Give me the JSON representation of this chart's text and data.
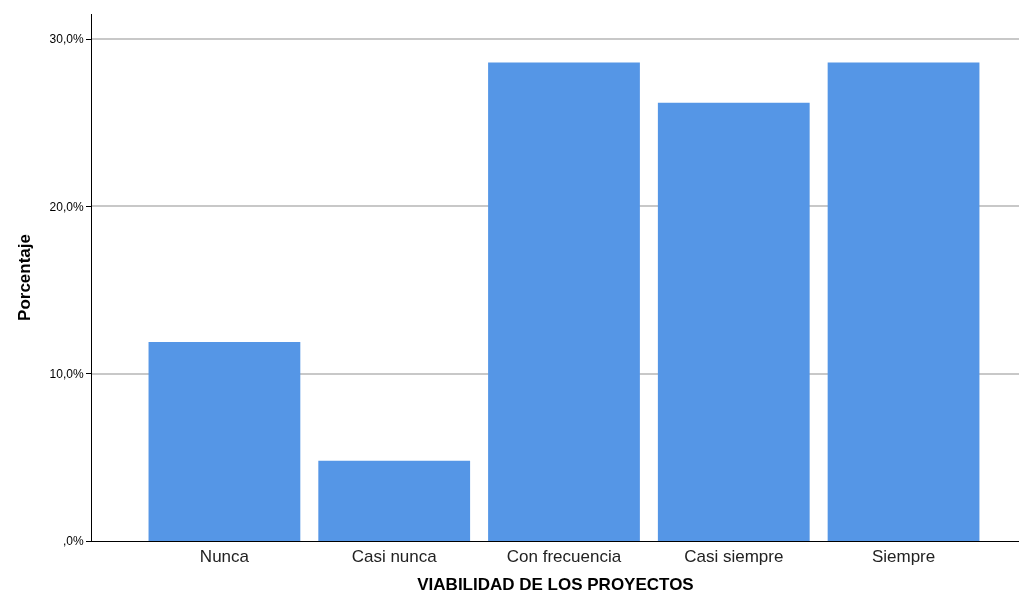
{
  "chart_data": {
    "type": "bar",
    "xlabel": "VIABILIDAD DE LOS PROYECTOS",
    "ylabel": "Porcentaje",
    "categories": [
      "Nunca",
      "Casi nunca",
      "Con frecuencia",
      "Casi siempre",
      "Siempre"
    ],
    "values": [
      11.9,
      4.8,
      28.6,
      26.2,
      28.6
    ],
    "color": "#5596e6",
    "ylim": [
      0,
      31.5
    ],
    "yticks": [
      {
        "value": 0,
        "label": ",0%"
      },
      {
        "value": 10,
        "label": "10,0%"
      },
      {
        "value": 20,
        "label": "20,0%"
      },
      {
        "value": 30,
        "label": "30,0%"
      }
    ],
    "grid": "y"
  }
}
